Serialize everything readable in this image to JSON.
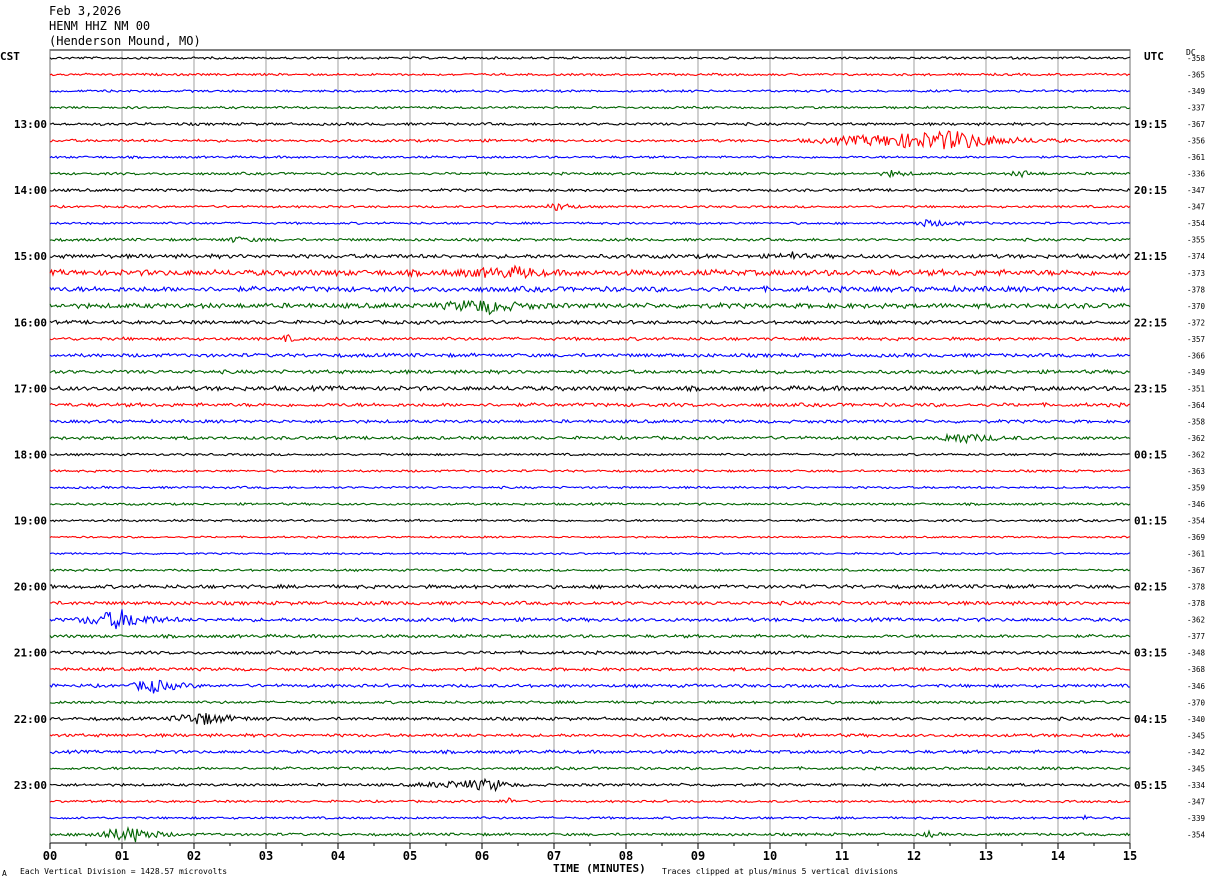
{
  "header": {
    "date": "Feb 3,2026",
    "station": "HENM HHZ NM 00",
    "location": "(Henderson Mound, MO)"
  },
  "left_zone": "CST",
  "right_zone": "UTC",
  "dc_label": "DC",
  "footer": {
    "scale": "Each Vertical Division = 1428.57 microvolts",
    "clip": "Traces clipped at plus/minus 5 vertical divisions",
    "marker": "A"
  },
  "colors": {
    "cycle": [
      "#000000",
      "#ff0000",
      "#0000ff",
      "#006400"
    ],
    "grid": "#888888"
  },
  "chart_data": {
    "type": "line",
    "title": "HENM HHZ NM 00 (Henderson Mound, MO)",
    "xlabel": "TIME (MINUTES)",
    "ylabel": "",
    "x_range": [
      0,
      15
    ],
    "x_ticks": [
      "00",
      "01",
      "02",
      "03",
      "04",
      "05",
      "06",
      "07",
      "08",
      "09",
      "10",
      "11",
      "12",
      "13",
      "14",
      "15"
    ],
    "trace_minutes": 15,
    "traces_per_hour": 4,
    "hours_cst": [
      "13:00",
      "14:00",
      "15:00",
      "16:00",
      "17:00",
      "18:00",
      "19:00",
      "20:00",
      "21:00",
      "22:00",
      "23:00"
    ],
    "hours_utc": [
      "19:15",
      "20:15",
      "21:15",
      "22:15",
      "23:15",
      "00:15",
      "01:15",
      "02:15",
      "03:15",
      "04:15",
      "05:15"
    ],
    "hour_label_first_trace": 4,
    "dc_offsets": [
      -358,
      -365,
      -349,
      -337,
      -367,
      -356,
      -361,
      -336,
      -347,
      -347,
      -354,
      -355,
      -374,
      -373,
      -378,
      -370,
      -372,
      -357,
      -366,
      -349,
      -351,
      -364,
      -358,
      -362,
      -362,
      -363,
      -359,
      -346,
      -354,
      -369,
      -361,
      -367,
      -378,
      -378,
      -362,
      -377,
      -348,
      -368,
      -346,
      -370,
      -340,
      -345,
      -342,
      -345,
      -334,
      -347,
      -339,
      -354
    ],
    "trace_base_amplitude": [
      1,
      1,
      1,
      1,
      1.2,
      1.2,
      1,
      1.1,
      1.2,
      1,
      1,
      1.2,
      1.8,
      2.6,
      2.3,
      2.2,
      1.6,
      1.4,
      1.6,
      1.6,
      2.0,
      1.6,
      1.4,
      1.4,
      1,
      1,
      1,
      1,
      1,
      0.8,
      0.8,
      1,
      1.6,
      1.6,
      1.6,
      1.4,
      1.4,
      1.4,
      1.4,
      1.2,
      1.4,
      1.4,
      1.4,
      1.2,
      1.2,
      1,
      1,
      1.2
    ],
    "events": [
      {
        "trace": 5,
        "start_min": 10.3,
        "end_min": 14.2,
        "peak_min": 12.6,
        "amplitude": 9
      },
      {
        "trace": 7,
        "start_min": 11.5,
        "end_min": 12.2,
        "peak_min": 11.7,
        "amplitude": 3
      },
      {
        "trace": 7,
        "start_min": 13.3,
        "end_min": 13.9,
        "peak_min": 13.5,
        "amplitude": 3
      },
      {
        "trace": 9,
        "start_min": 6.8,
        "end_min": 7.5,
        "peak_min": 7.1,
        "amplitude": 4
      },
      {
        "trace": 10,
        "start_min": 11.9,
        "end_min": 13.2,
        "peak_min": 12.2,
        "amplitude": 3
      },
      {
        "trace": 11,
        "start_min": 2.3,
        "end_min": 3.3,
        "peak_min": 2.6,
        "amplitude": 2
      },
      {
        "trace": 12,
        "start_min": 10.1,
        "end_min": 10.6,
        "peak_min": 10.3,
        "amplitude": 4
      },
      {
        "trace": 13,
        "start_min": 5.3,
        "end_min": 7.0,
        "peak_min": 6.6,
        "amplitude": 4
      },
      {
        "trace": 15,
        "start_min": 5.3,
        "end_min": 7.0,
        "peak_min": 6.1,
        "amplitude": 6
      },
      {
        "trace": 17,
        "start_min": 3.2,
        "end_min": 3.5,
        "peak_min": 3.3,
        "amplitude": 3
      },
      {
        "trace": 23,
        "start_min": 12.3,
        "end_min": 13.7,
        "peak_min": 12.6,
        "amplitude": 5
      },
      {
        "trace": 34,
        "start_min": 0.3,
        "end_min": 1.9,
        "peak_min": 1.0,
        "amplitude": 9
      },
      {
        "trace": 38,
        "start_min": 1.1,
        "end_min": 2.2,
        "peak_min": 1.4,
        "amplitude": 7
      },
      {
        "trace": 40,
        "start_min": 1.6,
        "end_min": 3.1,
        "peak_min": 2.1,
        "amplitude": 6
      },
      {
        "trace": 44,
        "start_min": 4.9,
        "end_min": 6.6,
        "peak_min": 6.2,
        "amplitude": 5
      },
      {
        "trace": 45,
        "start_min": 6.2,
        "end_min": 6.6,
        "peak_min": 6.4,
        "amplitude": 3
      },
      {
        "trace": 46,
        "start_min": 14.3,
        "end_min": 14.5,
        "peak_min": 14.4,
        "amplitude": 3
      },
      {
        "trace": 47,
        "start_min": 0.4,
        "end_min": 1.9,
        "peak_min": 1.2,
        "amplitude": 7
      },
      {
        "trace": 47,
        "start_min": 12.1,
        "end_min": 12.4,
        "peak_min": 12.2,
        "amplitude": 3
      }
    ]
  }
}
